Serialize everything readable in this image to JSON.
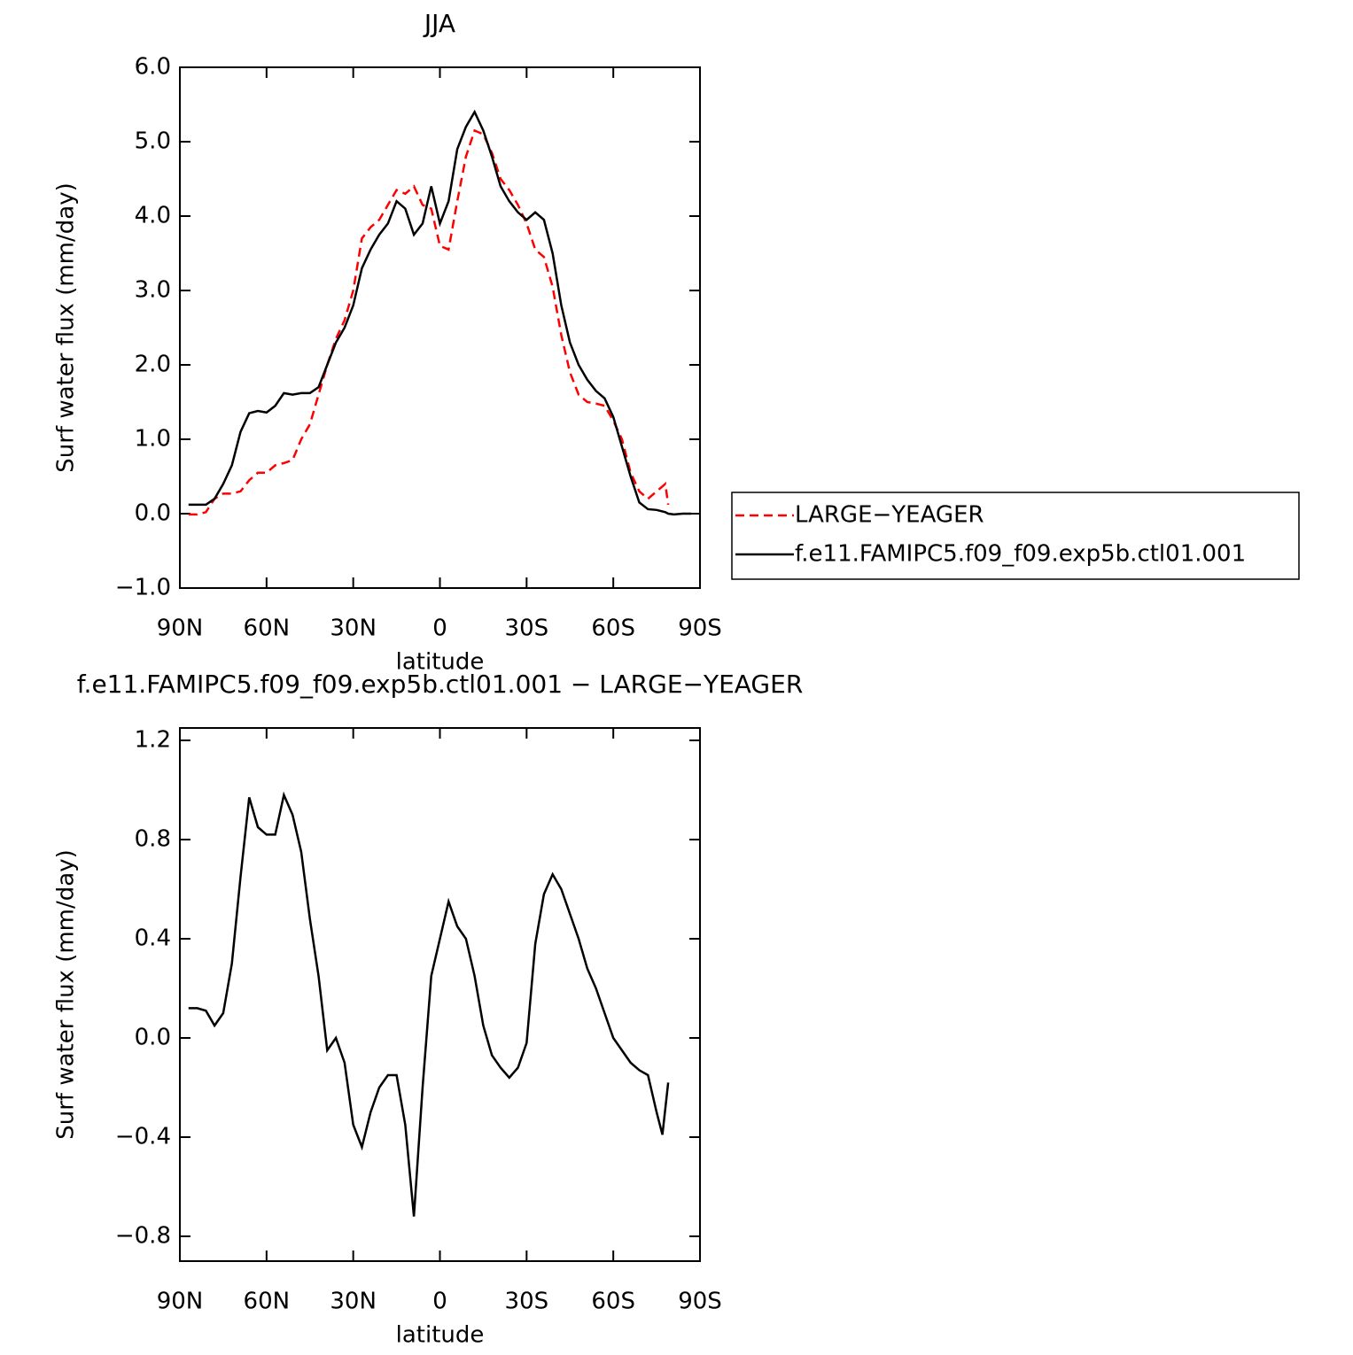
{
  "chart_data": [
    {
      "type": "line",
      "title": "JJA",
      "xlabel": "latitude",
      "ylabel": "Surf water flux (mm/day)",
      "x": [
        87,
        84,
        81,
        78,
        75,
        72,
        69,
        66,
        63,
        60,
        57,
        54,
        51,
        48,
        45,
        42,
        39,
        36,
        33,
        30,
        27,
        24,
        21,
        18,
        15,
        12,
        9,
        6,
        3,
        0,
        -3,
        -6,
        -9,
        -12,
        -15,
        -18,
        -21,
        -24,
        -27,
        -30,
        -33,
        -36,
        -39,
        -42,
        -45,
        -48,
        -51,
        -54,
        -57,
        -60,
        -63,
        -66,
        -69,
        -72,
        -75,
        -78,
        -79,
        -81,
        -84,
        -87
      ],
      "series": [
        {
          "name": "LARGE−YEAGER",
          "color": "#ff0000",
          "linestyle": "dashed",
          "values": [
            -0.01,
            -0.01,
            0.02,
            0.2,
            0.27,
            0.27,
            0.3,
            0.45,
            0.55,
            0.55,
            0.65,
            0.68,
            0.72,
            1.0,
            1.2,
            1.6,
            2.0,
            2.35,
            2.6,
            3.0,
            3.7,
            3.85,
            3.95,
            4.15,
            4.35,
            4.3,
            4.4,
            4.15,
            4.1,
            3.6,
            3.55,
            4.2,
            4.8,
            5.15,
            5.1,
            4.85,
            4.5,
            4.35,
            4.15,
            3.9,
            3.55,
            3.45,
            3.05,
            2.4,
            1.9,
            1.6,
            1.5,
            1.48,
            1.45,
            1.25,
            1.0,
            0.55,
            0.3,
            0.2,
            0.3,
            0.4,
            0.12,
            null,
            null,
            null
          ]
        },
        {
          "name": "f.e11.FAMIPC5.f09_f09.exp5b.ctl01.001",
          "color": "#000000",
          "linestyle": "solid",
          "values": [
            0.12,
            0.12,
            0.12,
            0.2,
            0.4,
            0.65,
            1.1,
            1.35,
            1.38,
            1.36,
            1.45,
            1.62,
            1.6,
            1.62,
            1.62,
            1.7,
            2.0,
            2.3,
            2.5,
            2.8,
            3.3,
            3.55,
            3.75,
            3.9,
            4.2,
            4.1,
            3.75,
            3.9,
            4.4,
            3.9,
            4.2,
            4.9,
            5.2,
            5.4,
            5.15,
            4.8,
            4.4,
            4.2,
            4.05,
            3.95,
            4.05,
            3.95,
            3.5,
            2.8,
            2.3,
            2.0,
            1.8,
            1.65,
            1.55,
            1.3,
            0.9,
            0.5,
            0.15,
            0.06,
            0.05,
            0.02,
            0.0,
            -0.01,
            0.0,
            0.0
          ]
        }
      ],
      "xlim": [
        90,
        -90
      ],
      "xticks": [
        {
          "value": 90,
          "label": "90N"
        },
        {
          "value": 60,
          "label": "60N"
        },
        {
          "value": 30,
          "label": "30N"
        },
        0,
        {
          "value": -30,
          "label": "30S"
        },
        {
          "value": -60,
          "label": "60S"
        },
        {
          "value": -90,
          "label": "90S"
        }
      ],
      "ylim": [
        -1,
        6
      ],
      "yticks": [
        {
          "value": -1,
          "label": "−1.0"
        },
        {
          "value": 0,
          "label": "0.0"
        },
        {
          "value": 1,
          "label": "1.0"
        },
        {
          "value": 2,
          "label": "2.0"
        },
        {
          "value": 3,
          "label": "3.0"
        },
        {
          "value": 4,
          "label": "4.0"
        },
        {
          "value": 5,
          "label": "5.0"
        },
        {
          "value": 6,
          "label": "6.0"
        }
      ],
      "legend": "right"
    },
    {
      "type": "line",
      "title": "f.e11.FAMIPC5.f09_f09.exp5b.ctl01.001 − LARGE−YEAGER",
      "xlabel": "latitude",
      "ylabel": "Surf water flux (mm/day)",
      "x": [
        87,
        84,
        81,
        78,
        75,
        72,
        69,
        66,
        63,
        60,
        57,
        54,
        51,
        48,
        45,
        42,
        39,
        36,
        33,
        30,
        27,
        24,
        21,
        18,
        15,
        12,
        9,
        6,
        3,
        0,
        -3,
        -6,
        -9,
        -12,
        -15,
        -18,
        -21,
        -24,
        -27,
        -30,
        -33,
        -36,
        -39,
        -42,
        -45,
        -48,
        -51,
        -54,
        -57,
        -60,
        -63,
        -66,
        -69,
        -72,
        -75,
        -77,
        -79
      ],
      "series": [
        {
          "color": "#000000",
          "linestyle": "solid",
          "values": [
            0.12,
            0.12,
            0.11,
            0.05,
            0.1,
            0.3,
            0.65,
            0.97,
            0.85,
            0.82,
            0.82,
            0.98,
            0.9,
            0.75,
            0.48,
            0.25,
            -0.05,
            0.0,
            -0.1,
            -0.35,
            -0.44,
            -0.3,
            -0.2,
            -0.15,
            -0.15,
            -0.35,
            -0.72,
            -0.2,
            0.25,
            0.4,
            0.55,
            0.45,
            0.4,
            0.25,
            0.05,
            -0.07,
            -0.12,
            -0.16,
            -0.12,
            -0.02,
            0.38,
            0.58,
            0.66,
            0.6,
            0.5,
            0.4,
            0.28,
            0.2,
            0.1,
            0.0,
            -0.05,
            -0.1,
            -0.13,
            -0.15,
            -0.3,
            -0.39,
            -0.18
          ]
        }
      ],
      "xlim": [
        90,
        -90
      ],
      "xticks": [
        {
          "value": 90,
          "label": "90N"
        },
        {
          "value": 60,
          "label": "60N"
        },
        {
          "value": 30,
          "label": "30N"
        },
        0,
        {
          "value": -30,
          "label": "30S"
        },
        {
          "value": -60,
          "label": "60S"
        },
        {
          "value": -90,
          "label": "90S"
        }
      ],
      "ylim": [
        -0.9,
        1.25
      ],
      "yticks": [
        {
          "value": -0.8,
          "label": "−0.8"
        },
        {
          "value": -0.4,
          "label": "−0.4"
        },
        {
          "value": 0,
          "label": "0.0"
        },
        0.4,
        0.8,
        1.2
      ]
    }
  ]
}
